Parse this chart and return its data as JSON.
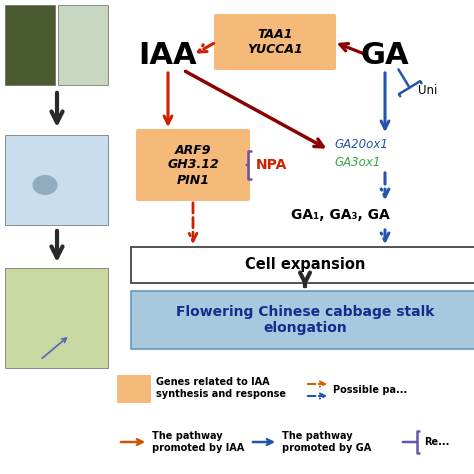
{
  "bg_color": "#ffffff",
  "orange_box_color": "#F5B97A",
  "blue_box_color": "#A8C8E0",
  "red_color": "#CC2200",
  "dark_red": "#8B0000",
  "blue_color": "#2255AA",
  "purple_color": "#6655AA",
  "green_color": "#33AA44",
  "dark_arrow": "#2A2A2A",
  "IAA_label": "IAA",
  "GA_label": "GA",
  "TAA1_label": "TAA1\nYUCCA1",
  "ARF9_label": "ARF9\nGH3.12\nPIN1",
  "NPA_label": "NPA",
  "GA20ox1_label": "GA20ox1",
  "GA3ox1_label": "GA3ox1",
  "GA_products_label": "GA₁, GA₃, GA",
  "cell_expansion_label": "Cell expansion",
  "flowering_label": "Flowering Chinese cabbage stalk\nelongation",
  "Uni_label": "Uni",
  "legend_genes_label": "Genes related to IAA\nsynthesis and response",
  "legend_possible_label": "Possible pa...",
  "legend_IAA_pathway": "The pathway\npromoted by IAA",
  "legend_GA_pathway": "The pathway\npromoted by GA",
  "legend_repression": "Re..."
}
